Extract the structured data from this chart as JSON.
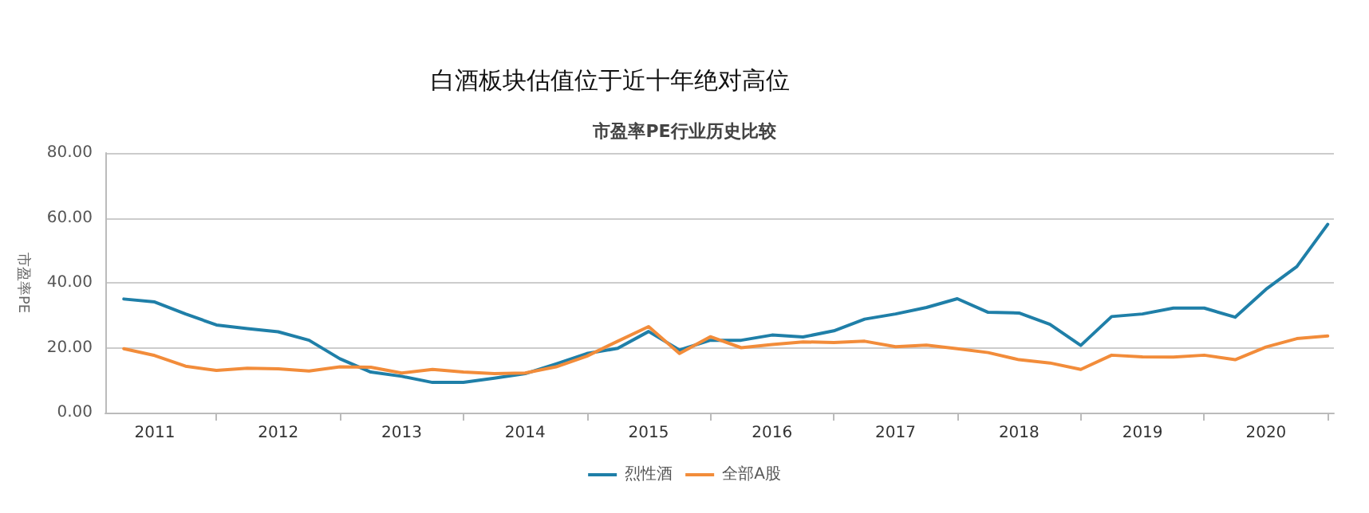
{
  "chart_data": {
    "type": "line",
    "title": "白酒板块估值位于近十年绝对高位",
    "subtitle": "市盈率PE行业历史比较",
    "ylabel": "市盈率PE",
    "x": [
      2011.25,
      2011.5,
      2011.75,
      2012,
      2012.25,
      2012.5,
      2012.75,
      2013,
      2013.25,
      2013.5,
      2013.75,
      2014,
      2014.25,
      2014.5,
      2014.75,
      2015,
      2015.25,
      2015.5,
      2015.75,
      2016,
      2016.25,
      2016.5,
      2016.75,
      2017,
      2017.25,
      2017.5,
      2017.75,
      2018,
      2018.25,
      2018.5,
      2018.75,
      2019,
      2019.25,
      2019.5,
      2019.75,
      2020,
      2020.25,
      2020.5,
      2020.75,
      2021
    ],
    "series": [
      {
        "name": "烈性酒",
        "color": "#1f7fa8",
        "values": [
          35.0,
          34.1,
          30.4,
          27.0,
          25.9,
          24.9,
          22.3,
          16.6,
          12.5,
          11.2,
          9.3,
          9.3,
          10.6,
          12.0,
          15.0,
          18.2,
          19.8,
          25.0,
          19.3,
          22.3,
          22.3,
          23.9,
          23.3,
          25.2,
          28.8,
          30.4,
          32.4,
          35.1,
          30.9,
          30.7,
          27.2,
          20.7,
          29.6,
          30.4,
          32.2,
          32.2,
          29.4,
          38.0,
          45.0,
          58.0
        ]
      },
      {
        "name": "全部A股",
        "color": "#f28c3a",
        "values": [
          19.7,
          17.6,
          14.3,
          13.0,
          13.7,
          13.5,
          12.8,
          14.1,
          14.0,
          12.2,
          13.3,
          12.5,
          12.0,
          12.2,
          14.1,
          17.4,
          22.0,
          26.5,
          18.2,
          23.4,
          20.0,
          21.0,
          21.8,
          21.6,
          22.0,
          20.3,
          20.8,
          19.7,
          18.5,
          16.3,
          15.3,
          13.3,
          17.7,
          17.2,
          17.1,
          17.7,
          16.3,
          20.2,
          22.8,
          23.6
        ]
      }
    ],
    "xlim": [
      2011.1,
      2021.05
    ],
    "xticks": [
      {
        "value": 2011.5,
        "label": "2011"
      },
      {
        "value": 2012,
        "label": null
      },
      {
        "value": 2012.5,
        "label": "2012"
      },
      {
        "value": 2013,
        "label": null
      },
      {
        "value": 2013.5,
        "label": "2013"
      },
      {
        "value": 2014,
        "label": null
      },
      {
        "value": 2014.5,
        "label": "2014"
      },
      {
        "value": 2015,
        "label": null
      },
      {
        "value": 2015.5,
        "label": "2015"
      },
      {
        "value": 2016,
        "label": null
      },
      {
        "value": 2016.5,
        "label": "2016"
      },
      {
        "value": 2017,
        "label": null
      },
      {
        "value": 2017.5,
        "label": "2017"
      },
      {
        "value": 2018,
        "label": null
      },
      {
        "value": 2018.5,
        "label": "2018"
      },
      {
        "value": 2019,
        "label": null
      },
      {
        "value": 2019.5,
        "label": "2019"
      },
      {
        "value": 2020,
        "label": null
      },
      {
        "value": 2020.5,
        "label": "2020"
      },
      {
        "value": 2021,
        "label": null
      }
    ],
    "ylim": [
      0,
      80
    ],
    "yticks": [
      {
        "value": 0,
        "label": "0.00"
      },
      {
        "value": 20,
        "label": "20.00"
      },
      {
        "value": 40,
        "label": "40.00"
      },
      {
        "value": 60,
        "label": "60.00"
      },
      {
        "value": 80,
        "label": "80.00"
      }
    ],
    "grid": "y",
    "legend": "bottom",
    "marker": "none",
    "line_style": "solid"
  }
}
